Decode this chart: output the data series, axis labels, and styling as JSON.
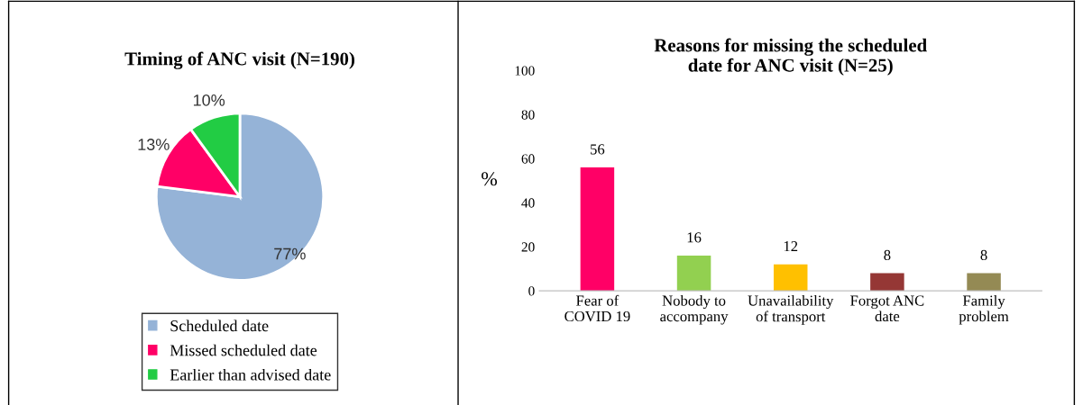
{
  "chart_data": [
    {
      "type": "pie",
      "title": "Timing of ANC visit (N=190)",
      "categories": [
        "Scheduled date",
        "Missed scheduled date",
        "Earlier than advised date"
      ],
      "values": [
        77,
        13,
        10
      ],
      "colors": [
        "#95b3d7",
        "#ff0066",
        "#22cc44"
      ],
      "value_labels": [
        "77%",
        "13%",
        "10%"
      ],
      "legend": "bottom"
    },
    {
      "type": "bar",
      "title": "Reasons for missing the scheduled\ndate for ANC visit (N=25)",
      "ylabel": "%",
      "categories": [
        "Fear of\nCOVID 19",
        "Nobody to\naccompany",
        "Unavailability\nof transport",
        "Forgot ANC\ndate",
        "Family\nproblem"
      ],
      "values": [
        56,
        16,
        12,
        8,
        8
      ],
      "colors": [
        "#ff0066",
        "#92d050",
        "#ffc000",
        "#953735",
        "#948a54"
      ],
      "ylim": [
        0,
        100
      ],
      "yticks": [
        0,
        20,
        40,
        60,
        80,
        100
      ],
      "data_labels": true,
      "grid": false,
      "legend": false
    }
  ]
}
